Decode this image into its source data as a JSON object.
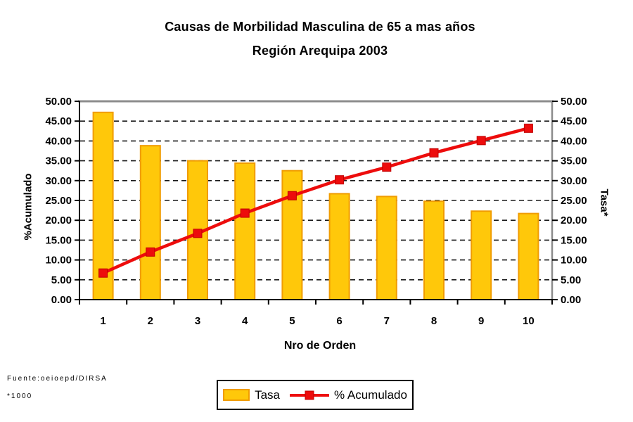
{
  "title": {
    "line1": "Causas de Morbilidad Masculina de 65 a mas años",
    "line2": "Región Arequipa 2003"
  },
  "chart_data": {
    "type": "bar",
    "subtype": "pareto (bars + cumulative line)",
    "title": "Causas de Morbilidad Masculina de 65 a mas años — Región Arequipa 2003",
    "categories": [
      "1",
      "2",
      "3",
      "4",
      "5",
      "6",
      "7",
      "8",
      "9",
      "10"
    ],
    "series": [
      {
        "name": "Tasa",
        "type": "bar",
        "axis": "right",
        "values": [
          47.2,
          38.8,
          35.0,
          34.4,
          32.5,
          26.7,
          26.0,
          24.8,
          22.3,
          21.7
        ],
        "fill_color": "#FFC80A",
        "border_color": "#F09C00"
      },
      {
        "name": "% Acumulado",
        "type": "line",
        "axis": "left",
        "values": [
          6.7,
          12.0,
          16.7,
          21.8,
          26.2,
          30.2,
          33.4,
          37.0,
          40.1,
          43.2
        ],
        "color": "#ED0C0C",
        "marker": "square"
      }
    ],
    "xlabel": "Nro de Orden",
    "ylabel_left": "%Acumulado",
    "ylabel_right": "Tasa*",
    "ylim": [
      0,
      50
    ],
    "ytick_step": 5,
    "y_ticks": [
      "0.00",
      "5.00",
      "10.00",
      "15.00",
      "20.00",
      "25.00",
      "30.00",
      "35.00",
      "40.00",
      "45.00",
      "50.00"
    ],
    "grid": "horizontal dashed black",
    "legend_position": "bottom-center",
    "plot_border_top_right_color": "#8C8C8C",
    "plot_border_left_bottom_color": "#000000"
  },
  "legend": {
    "bar_label": "Tasa",
    "line_label": "% Acumulado"
  },
  "footer": {
    "source": "Fuente:oeioepd/DIRSA",
    "note": "*1000"
  }
}
